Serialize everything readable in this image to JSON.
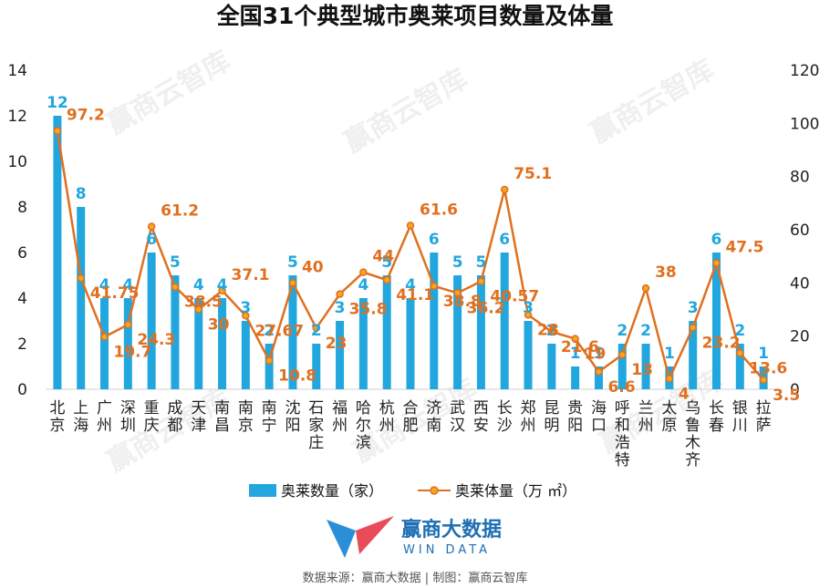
{
  "chart_data": {
    "type": "bar+line",
    "title": "全国31个典型城市奥莱项目数量及体量",
    "categories": [
      "北京",
      "上海",
      "广州",
      "深圳",
      "重庆",
      "成都",
      "天津",
      "南昌",
      "南京",
      "南宁",
      "沈阳",
      "石家庄",
      "福州",
      "哈尔滨",
      "杭州",
      "合肥",
      "济南",
      "武汉",
      "西安",
      "长沙",
      "郑州",
      "昆明",
      "贵阳",
      "海口",
      "呼和浩特",
      "兰州",
      "太原",
      "乌鲁木齐",
      "长春",
      "银川",
      "拉萨"
    ],
    "series": [
      {
        "name": "奥莱数量（家）",
        "type": "bar",
        "axis": "left",
        "color": "#21A7DE",
        "values": [
          12,
          8,
          4,
          4,
          6,
          5,
          4,
          4,
          3,
          2,
          5,
          2,
          3,
          4,
          5,
          4,
          6,
          5,
          5,
          6,
          3,
          2,
          1,
          1,
          2,
          2,
          1,
          3,
          6,
          2,
          1
        ]
      },
      {
        "name": "奥莱体量（万 ㎡）",
        "type": "line",
        "axis": "right",
        "color": "#E0701F",
        "values": [
          97.2,
          41.75,
          19.7,
          24.3,
          61.2,
          38.5,
          30,
          37.1,
          27.67,
          10.8,
          40,
          23,
          35.8,
          44,
          41.1,
          61.6,
          38.8,
          36.2,
          40.57,
          75.1,
          28,
          21.6,
          19,
          6.6,
          13,
          38,
          4,
          23.2,
          47.5,
          13.6,
          3.5
        ]
      }
    ],
    "y_left": {
      "min": 0,
      "max": 14,
      "ticks": [
        0,
        2,
        4,
        6,
        8,
        10,
        12,
        14
      ]
    },
    "y_right": {
      "min": 0,
      "max": 120,
      "ticks": [
        0,
        20,
        40,
        60,
        80,
        100,
        120
      ]
    },
    "legend_position": "bottom"
  },
  "watermark": "赢商云智库",
  "logo": {
    "cn": "赢商大数据",
    "en": "WIN DATA"
  },
  "source": "数据来源：赢商大数据 | 制图：赢商云智库"
}
